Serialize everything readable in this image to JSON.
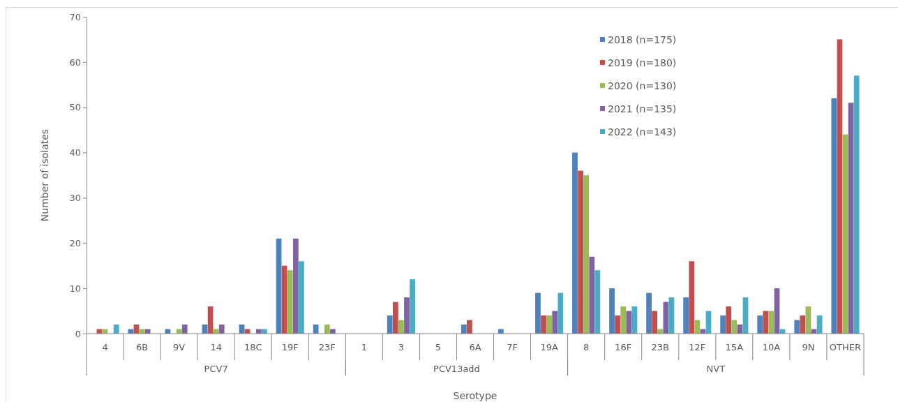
{
  "chart_data": {
    "type": "bar",
    "xlabel": "Serotype",
    "ylabel": "Number of isolates",
    "categories": [
      "4",
      "6B",
      "9V",
      "14",
      "18C",
      "19F",
      "23F",
      "1",
      "3",
      "5",
      "6A",
      "7F",
      "19A",
      "8",
      "16F",
      "23B",
      "12F",
      "15A",
      "10A",
      "9N",
      "OTHER"
    ],
    "series": [
      {
        "name": "2018 (n=175)",
        "color": "#4f81bd",
        "values": [
          0,
          1,
          1,
          2,
          2,
          21,
          2,
          0,
          4,
          0,
          2,
          1,
          9,
          40,
          10,
          9,
          8,
          4,
          4,
          3,
          52
        ]
      },
      {
        "name": "2019 (n=180)",
        "color": "#c0504d",
        "values": [
          1,
          2,
          0,
          6,
          1,
          15,
          0,
          0,
          7,
          0,
          3,
          0,
          4,
          36,
          4,
          5,
          16,
          6,
          5,
          4,
          65
        ]
      },
      {
        "name": "2020 (n=130)",
        "color": "#9bbb59",
        "values": [
          1,
          1,
          1,
          1,
          0,
          14,
          2,
          0,
          3,
          0,
          0,
          0,
          4,
          35,
          6,
          1,
          3,
          3,
          5,
          6,
          44
        ]
      },
      {
        "name": "2021 (n=135)",
        "color": "#8064a2",
        "values": [
          0,
          1,
          2,
          2,
          1,
          21,
          1,
          0,
          8,
          0,
          0,
          0,
          5,
          17,
          5,
          7,
          1,
          2,
          10,
          1,
          51
        ]
      },
      {
        "name": "2022 (n=143)",
        "color": "#4bacc6",
        "values": [
          2,
          0,
          0,
          0,
          1,
          16,
          0,
          0,
          12,
          0,
          0,
          0,
          9,
          14,
          6,
          8,
          5,
          8,
          1,
          4,
          57
        ]
      }
    ],
    "ylim": [
      0,
      70
    ],
    "yticks": [
      0,
      10,
      20,
      30,
      40,
      50,
      60,
      70
    ],
    "grid": false,
    "legend": "top right",
    "annotations": [
      "PCV7",
      "PCV13add",
      "NVT"
    ]
  }
}
